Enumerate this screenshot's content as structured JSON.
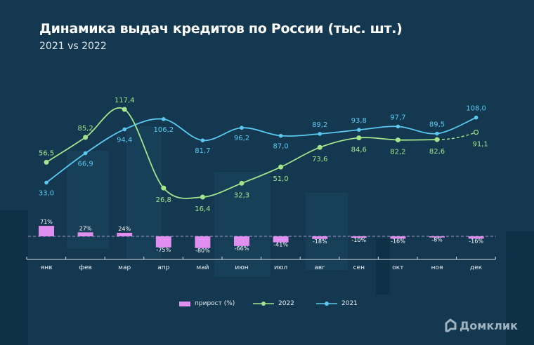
{
  "header": {
    "title": "Динамика выдач кредитов по России (тыс. шт.)",
    "subtitle": "2021 vs 2022"
  },
  "chart_data": {
    "type": "line",
    "categories": [
      "янв",
      "фев",
      "мар",
      "апр",
      "май",
      "июн",
      "июл",
      "авг",
      "сен",
      "окт",
      "ноя",
      "дек"
    ],
    "series": [
      {
        "name": "2022",
        "values": [
          56.5,
          85.2,
          117.4,
          26.8,
          16.4,
          32.3,
          51.0,
          73.6,
          84.6,
          82.2,
          82.6,
          91.1
        ],
        "labels": [
          "56,5",
          "85,2",
          "117,4",
          "26,8",
          "16,4",
          "32,3",
          "51,0",
          "73,6",
          "84,6",
          "82,2",
          "82,6",
          "91,1"
        ],
        "color": "#a3e48c",
        "note": "dec value dashed (forecast)"
      },
      {
        "name": "2021",
        "values": [
          33.0,
          66.9,
          94.4,
          106.2,
          81.7,
          96.2,
          87.0,
          89.2,
          93.8,
          97.7,
          89.5,
          108.0
        ],
        "labels": [
          "33,0",
          "66,9",
          "94,4",
          "106,2",
          "81,7",
          "96,2",
          "87,0",
          "89,2",
          "93,8",
          "97,7",
          "89,5",
          "108,0"
        ],
        "color": "#5cc8f0"
      },
      {
        "name": "прирост (%)",
        "type": "bar",
        "values": [
          71,
          27,
          24,
          -75,
          -80,
          -66,
          -41,
          -18,
          -10,
          -16,
          -8,
          -16
        ],
        "labels": [
          "71%",
          "27%",
          "24%",
          "-75%",
          "-80%",
          "-66%",
          "-41%",
          "-18%",
          "-10%",
          "-16%",
          "-8%",
          "-16%"
        ],
        "color": "#e08ef0"
      }
    ],
    "legend": "bottom",
    "grid": false
  },
  "legend": {
    "bar": "прирост (%)",
    "s2022": "2022",
    "s2021": "2021"
  },
  "brand": {
    "logo": "Домклик"
  }
}
